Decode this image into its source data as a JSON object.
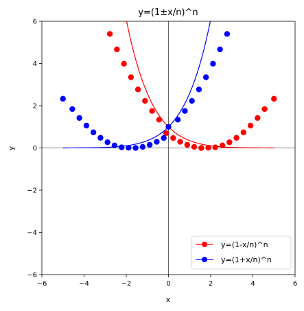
{
  "chart_data": {
    "type": "line",
    "title": "y=(1±x/n)^n",
    "xlabel": "x",
    "ylabel": "y",
    "xlim": [
      -6,
      6
    ],
    "ylim": [
      -6,
      6
    ],
    "xticks": [
      -6,
      -4,
      -2,
      0,
      2,
      4,
      6
    ],
    "yticks": [
      -6,
      -4,
      -2,
      0,
      2,
      4,
      6
    ],
    "xtick_labels": [
      "−6",
      "−4",
      "−2",
      "0",
      "2",
      "4",
      "6"
    ],
    "ytick_labels": [
      "−6",
      "−4",
      "−2",
      "0",
      "2",
      "4",
      "6"
    ],
    "reference_lines": {
      "x": 0,
      "y": 0
    },
    "grid": false,
    "legend_position": "lower-right",
    "series": [
      {
        "name": "y=(1-x/n)^n",
        "color": "#ff0000",
        "marker": "circle",
        "x": [
          -2.778,
          -2.444,
          -2.111,
          -1.778,
          -1.444,
          -1.111,
          -0.778,
          -0.444,
          -0.111,
          0.222,
          0.556,
          0.889,
          1.222,
          1.556,
          1.889,
          2.222,
          2.556,
          2.889,
          3.222,
          3.556,
          3.889,
          4.222,
          4.556,
          5.0
        ],
        "y": [
          5.4,
          4.67,
          3.99,
          3.35,
          2.77,
          2.23,
          1.75,
          1.34,
          0.7,
          0.47,
          0.29,
          0.15,
          0.05,
          0.0,
          0.01,
          0.03,
          0.12,
          0.27,
          0.48,
          0.74,
          1.06,
          1.42,
          1.84,
          2.33
        ]
      },
      {
        "name": "y=(1+x/n)^n",
        "color": "#0000ff",
        "marker": "circle",
        "x": [
          -5.0,
          -4.556,
          -4.222,
          -3.889,
          -3.556,
          -3.222,
          -2.889,
          -2.556,
          -2.222,
          -1.889,
          -1.556,
          -1.222,
          -0.889,
          -0.556,
          -0.222,
          0.0,
          0.444,
          0.778,
          1.111,
          1.444,
          1.778,
          2.111,
          2.444,
          2.778
        ],
        "y": [
          2.33,
          1.84,
          1.42,
          1.06,
          0.74,
          0.48,
          0.27,
          0.12,
          0.03,
          0.01,
          0.0,
          0.05,
          0.15,
          0.29,
          0.47,
          1.0,
          1.34,
          1.75,
          2.23,
          2.77,
          3.35,
          3.99,
          4.67,
          5.4
        ]
      }
    ]
  }
}
